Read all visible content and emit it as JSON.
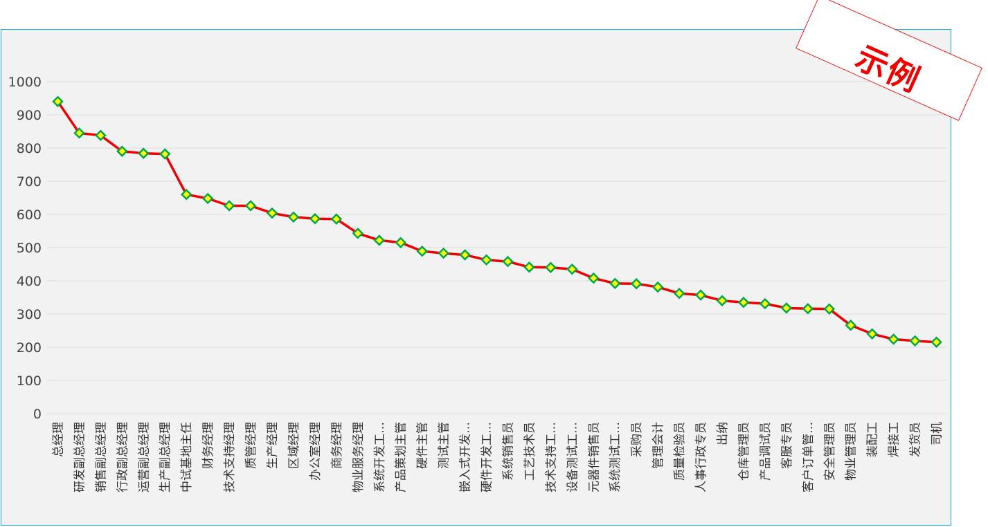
{
  "watermark": {
    "text": "示例"
  },
  "colors": {
    "line": "#f00000",
    "marker_fill": "#ffff00",
    "marker_stroke": "#00a550",
    "frame_border": "#1ea0dc",
    "grid": "#d9d9d9"
  },
  "chart_data": {
    "type": "line",
    "title": "",
    "xlabel": "",
    "ylabel": "",
    "ylim": [
      0,
      1000
    ],
    "yticks": [
      0,
      100,
      200,
      300,
      400,
      500,
      600,
      700,
      800,
      900,
      1000
    ],
    "grid": true,
    "legend": "none",
    "categories": [
      "总经理",
      "研发副总经理",
      "销售副总经理",
      "行政副总经理",
      "运营副总经理",
      "生产副总经理",
      "中试基地主任",
      "财务经理",
      "技术支持经理",
      "质管经理",
      "生产经理",
      "区域经理",
      "办公室经理",
      "商务经理",
      "物业服务经理",
      "系统开发工…",
      "产品策划主管",
      "硬件主管",
      "测试主管",
      "嵌入式开发…",
      "硬件开发工…",
      "系统销售员",
      "工艺技术员",
      "技术支持工…",
      "设备测试工…",
      "元器件销售员",
      "系统测试工…",
      "采购员",
      "管理会计",
      "质量检验员",
      "人事行政专员",
      "出纳",
      "仓库管理员",
      "产品调试员",
      "客服专员",
      "客户订单管…",
      "安全管理员",
      "物业管理员",
      "装配工",
      "焊接工",
      "发货员",
      "司机"
    ],
    "values": [
      940,
      845,
      838,
      790,
      784,
      782,
      660,
      648,
      626,
      626,
      604,
      592,
      587,
      586,
      543,
      522,
      515,
      489,
      483,
      478,
      463,
      458,
      441,
      440,
      435,
      408,
      392,
      391,
      381,
      362,
      357,
      340,
      335,
      331,
      318,
      316,
      315,
      266,
      240,
      224,
      219,
      215
    ]
  }
}
